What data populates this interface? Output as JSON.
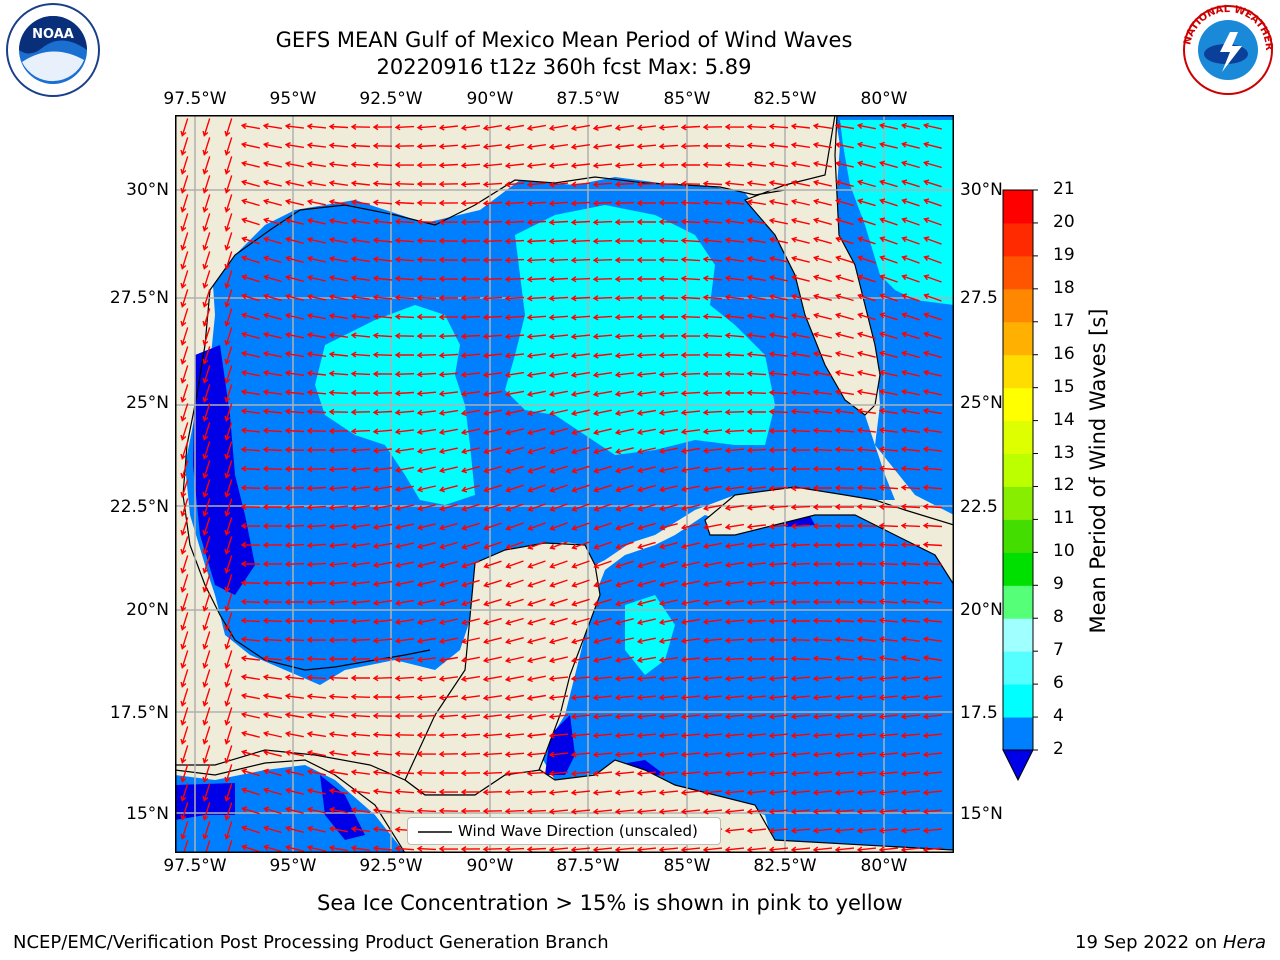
{
  "title": {
    "line1": "GEFS MEAN Gulf of Mexico Mean Period of Wind Waves",
    "line2": "20220916 t12z 360h fcst   Max: 5.89"
  },
  "map": {
    "top_lon_labels": [
      "97.5°W",
      "95°W",
      "92.5°W",
      "90°W",
      "87.5°W",
      "85°W",
      "82.5°W",
      "80°W"
    ],
    "bottom_lon_labels": [
      "97.5°W",
      "95°W",
      "92.5°W",
      "90°W",
      "87.5°W",
      "85°W",
      "82.5°W",
      "80°W"
    ],
    "left_lat_labels": [
      "30°N",
      "27.5°N",
      "25°N",
      "22.5°N",
      "20°N",
      "17.5°N",
      "15°N"
    ],
    "right_lat_labels": [
      "30°N",
      "27.5",
      "25°N",
      "22.5",
      "20°N",
      "17.5",
      "15°N"
    ],
    "legend_label": "Wind Wave Direction (unscaled)",
    "colors": {
      "land": "#efedda",
      "ocean_low": "#0000e8",
      "ocean": "#0080ff",
      "ocean_mid": "#00ffff",
      "arrows": "#ff0000",
      "grid": "#b0b0b0"
    }
  },
  "colorbar": {
    "label": "Mean Period of Wind Waves [s]",
    "tick_labels": [
      "2",
      "4",
      "6",
      "7",
      "8",
      "9",
      "10",
      "11",
      "12",
      "13",
      "14",
      "15",
      "16",
      "17",
      "18",
      "19",
      "20",
      "21"
    ],
    "colors": [
      "#0080ff",
      "#00ffff",
      "#55ffff",
      "#a0ffff",
      "#55ff77",
      "#00e000",
      "#44dd00",
      "#88ee00",
      "#bbff00",
      "#ddff00",
      "#ffff00",
      "#ffdd00",
      "#ffb000",
      "#ff8800",
      "#ff5500",
      "#ff2a00",
      "#ff0000"
    ]
  },
  "notes": {
    "sea_ice": "Sea Ice Concentration > 15% is shown in pink to yellow"
  },
  "footer": {
    "left": "NCEP/EMC/Verification Post Processing Product Generation Branch",
    "right_date": "19 Sep 2022 on ",
    "right_host": "Hera"
  },
  "logos": {
    "left": "noaa-logo",
    "right_text": "NATIONAL WEATHER SERVICE"
  }
}
